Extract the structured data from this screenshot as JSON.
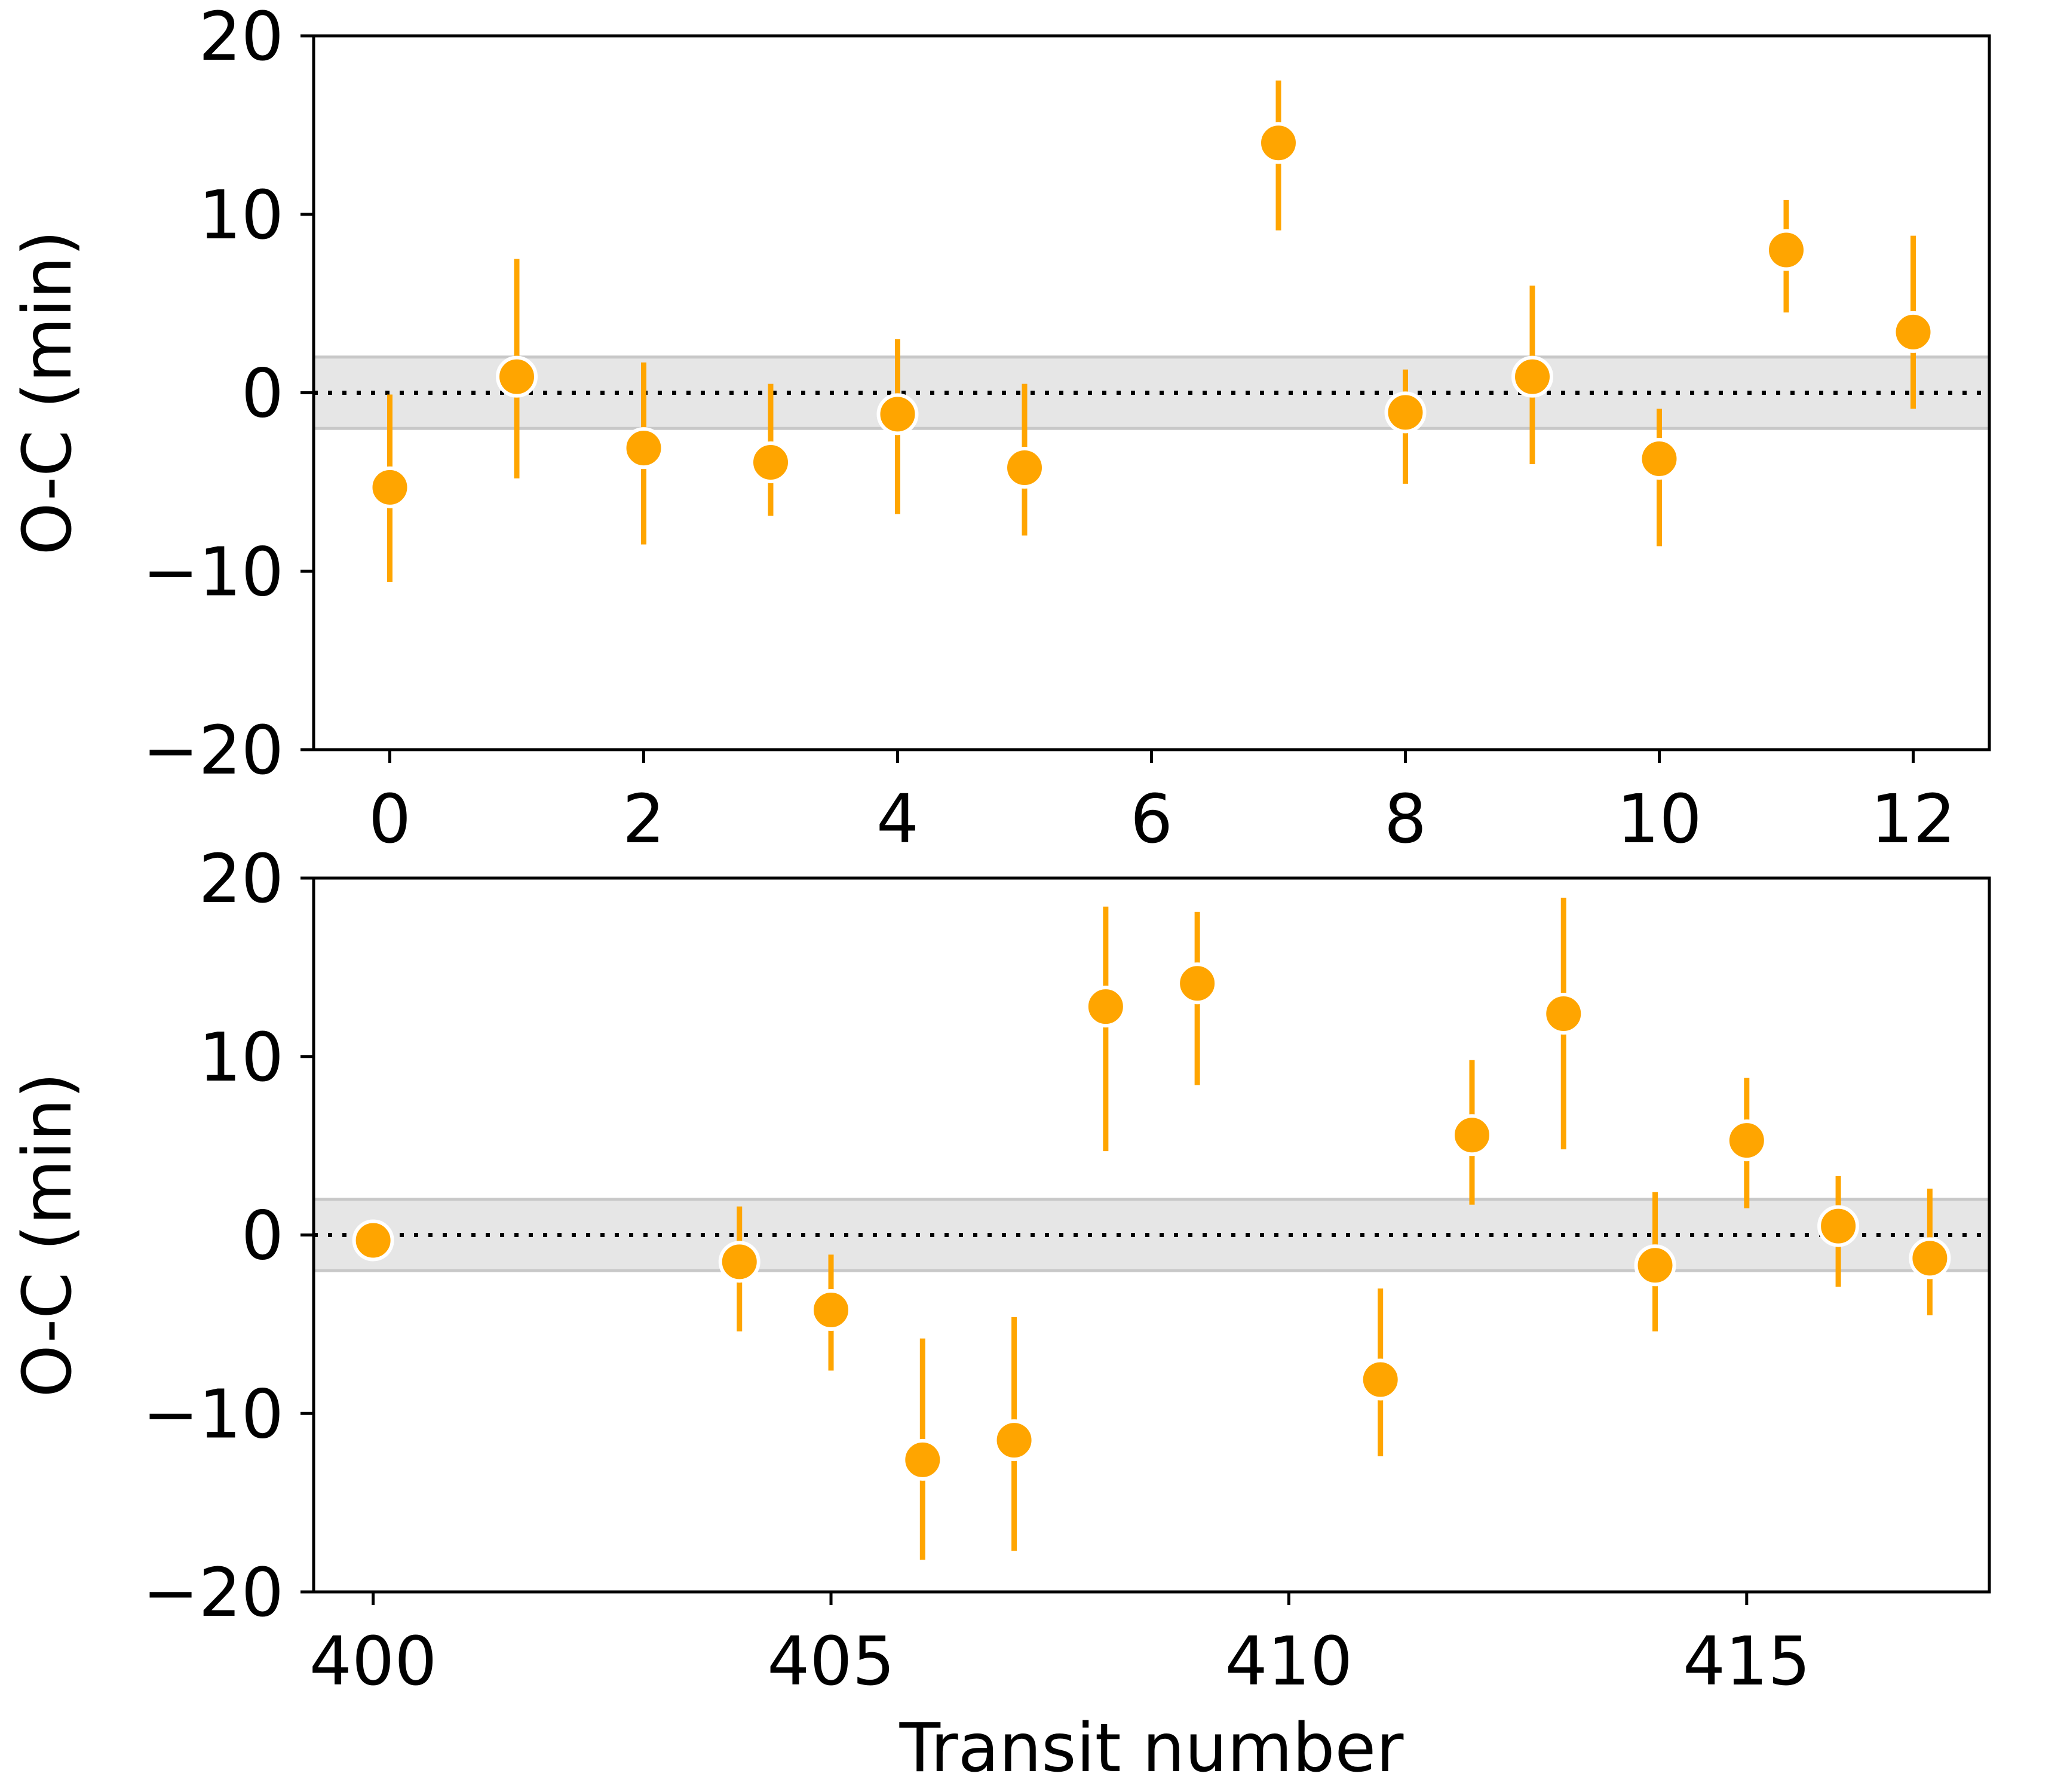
{
  "chart_data": [
    {
      "type": "scatter",
      "panel": "top",
      "xlabel": "",
      "ylabel": "O-C (min)",
      "xlim": [
        -0.6,
        12.6
      ],
      "ylim": [
        -20,
        20
      ],
      "xticks": [
        0,
        2,
        4,
        6,
        8,
        10,
        12
      ],
      "yticks": [
        20,
        10,
        0,
        -10,
        -20
      ],
      "xtick_labels": [
        "0",
        "2",
        "4",
        "6",
        "8",
        "10",
        "12"
      ],
      "ytick_labels": [
        "20",
        "10",
        "0",
        "−10",
        "−20"
      ],
      "reference_line": 0,
      "band": [
        -2,
        2
      ],
      "grid": false,
      "points": [
        {
          "x": 0,
          "y": -5.3,
          "lo": -10.6,
          "hi": -0.1
        },
        {
          "x": 1,
          "y": 0.9,
          "lo": -4.8,
          "hi": 7.5
        },
        {
          "x": 2,
          "y": -3.1,
          "lo": -8.5,
          "hi": 1.7
        },
        {
          "x": 3,
          "y": -3.9,
          "lo": -6.9,
          "hi": 0.5
        },
        {
          "x": 4,
          "y": -1.2,
          "lo": -6.8,
          "hi": 3.0
        },
        {
          "x": 5,
          "y": -4.2,
          "lo": -8.0,
          "hi": 0.5
        },
        {
          "x": 7,
          "y": 14.0,
          "lo": 9.1,
          "hi": 17.5
        },
        {
          "x": 8,
          "y": -1.1,
          "lo": -5.1,
          "hi": 1.3
        },
        {
          "x": 9,
          "y": 0.9,
          "lo": -4.0,
          "hi": 6.0
        },
        {
          "x": 10,
          "y": -3.7,
          "lo": -8.6,
          "hi": -0.9
        },
        {
          "x": 11,
          "y": 8.0,
          "lo": 4.5,
          "hi": 10.8
        },
        {
          "x": 12,
          "y": 3.4,
          "lo": -0.9,
          "hi": 8.8
        }
      ]
    },
    {
      "type": "scatter",
      "panel": "bottom",
      "xlabel": "Transit number",
      "ylabel": "O-C (min)",
      "xlim": [
        399.35,
        417.65
      ],
      "ylim": [
        -20,
        20
      ],
      "xticks": [
        400,
        405,
        410,
        415
      ],
      "yticks": [
        20,
        10,
        0,
        -10,
        -20
      ],
      "xtick_labels": [
        "400",
        "405",
        "410",
        "415"
      ],
      "ytick_labels": [
        "20",
        "10",
        "0",
        "−10",
        "−20"
      ],
      "reference_line": 0,
      "band": [
        -2,
        2
      ],
      "grid": false,
      "points": [
        {
          "x": 400,
          "y": -0.3,
          "lo": -0.3,
          "hi": -0.3
        },
        {
          "x": 404,
          "y": -1.5,
          "lo": -5.4,
          "hi": 1.6
        },
        {
          "x": 405,
          "y": -4.2,
          "lo": -7.6,
          "hi": -1.1
        },
        {
          "x": 406,
          "y": -12.6,
          "lo": -18.2,
          "hi": -5.8
        },
        {
          "x": 407,
          "y": -11.5,
          "lo": -17.7,
          "hi": -4.6
        },
        {
          "x": 408,
          "y": 12.8,
          "lo": 4.7,
          "hi": 18.4
        },
        {
          "x": 409,
          "y": 14.1,
          "lo": 8.4,
          "hi": 18.1
        },
        {
          "x": 411,
          "y": -8.1,
          "lo": -12.4,
          "hi": -3.0
        },
        {
          "x": 412,
          "y": 5.6,
          "lo": 1.7,
          "hi": 9.8
        },
        {
          "x": 413,
          "y": 12.4,
          "lo": 4.8,
          "hi": 18.9
        },
        {
          "x": 414,
          "y": -1.7,
          "lo": -5.4,
          "hi": 2.4
        },
        {
          "x": 415,
          "y": 5.3,
          "lo": 1.5,
          "hi": 8.8
        },
        {
          "x": 416,
          "y": 0.5,
          "lo": -2.9,
          "hi": 3.3
        },
        {
          "x": 417,
          "y": -1.3,
          "lo": -4.5,
          "hi": 2.6
        }
      ]
    }
  ],
  "colors": {
    "marker": "#FFA500",
    "marker_edge": "#FFFFFF",
    "band": "#E6E6E6",
    "band_edge": "#C8C8C8",
    "reference_line": "#000000",
    "axes": "#000000"
  }
}
